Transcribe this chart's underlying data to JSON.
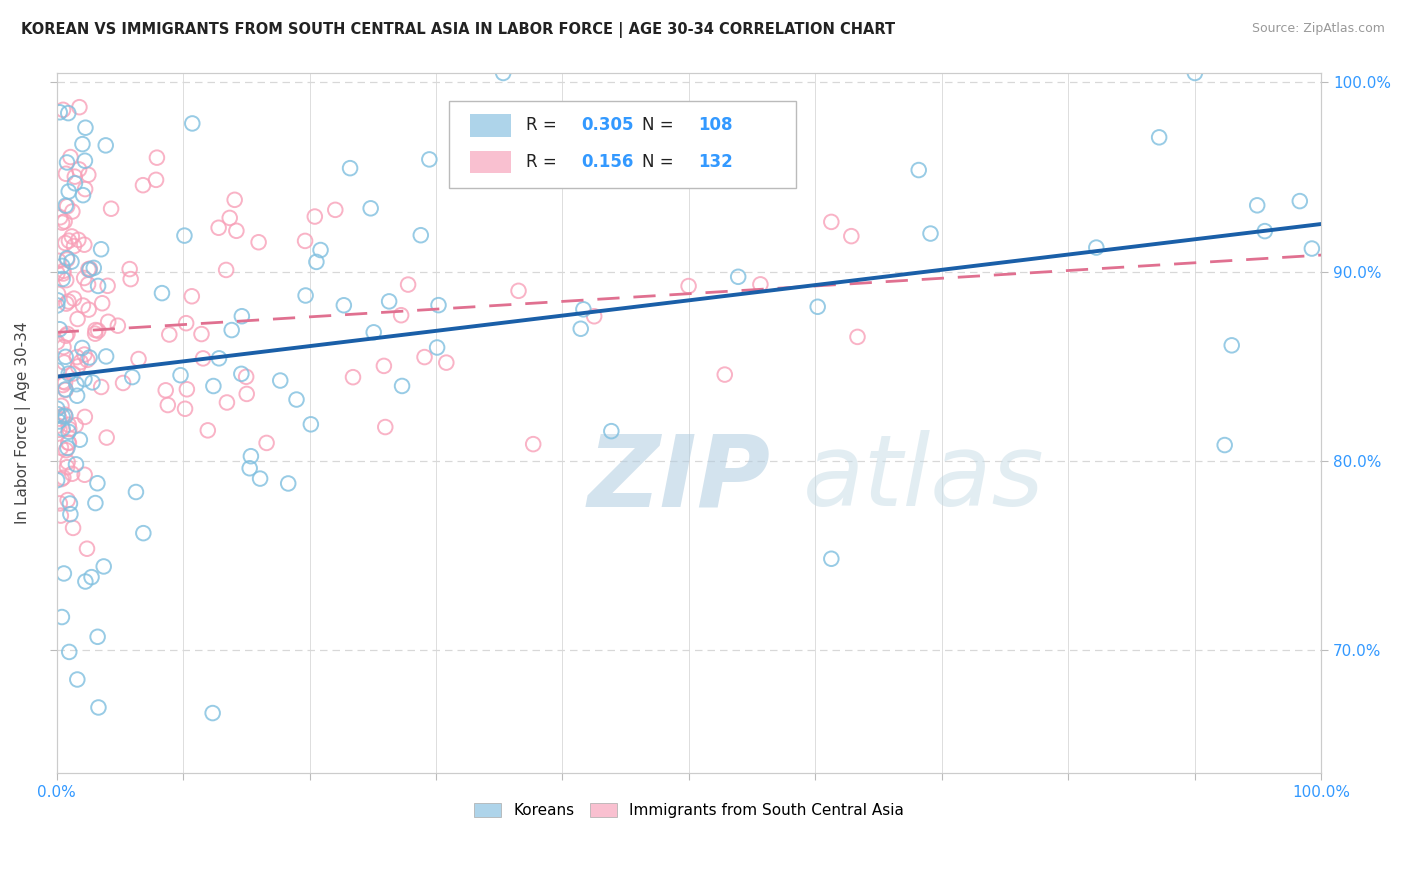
{
  "title": "KOREAN VS IMMIGRANTS FROM SOUTH CENTRAL ASIA IN LABOR FORCE | AGE 30-34 CORRELATION CHART",
  "source": "Source: ZipAtlas.com",
  "ylabel": "In Labor Force | Age 30-34",
  "xlim": [
    0.0,
    1.0
  ],
  "ylim": [
    0.635,
    1.005
  ],
  "x_ticks": [
    0.0,
    0.1,
    0.2,
    0.3,
    0.4,
    0.5,
    0.6,
    0.7,
    0.8,
    0.9,
    1.0
  ],
  "y_ticks": [
    0.7,
    0.8,
    0.9,
    1.0
  ],
  "y_tick_labels": [
    "70.0%",
    "80.0%",
    "90.0%",
    "100.0%"
  ],
  "korean_color": "#7fbfdf",
  "immigrant_color": "#f8a0b8",
  "legend_box_color_korean": "#aed4ea",
  "legend_box_color_immigrant": "#f9c0d0",
  "R_korean": 0.305,
  "N_korean": 108,
  "R_immigrant": 0.156,
  "N_immigrant": 132,
  "trend_color_korean": "#1a5fa8",
  "trend_color_immigrant": "#e07090",
  "background_color": "#ffffff",
  "grid_color": "#d8d8d8",
  "title_color": "#222222",
  "axis_color": "#3399ff",
  "label_color": "#444444",
  "watermark_zip_color": "#c8e0f0",
  "watermark_atlas_color": "#c0dce8"
}
